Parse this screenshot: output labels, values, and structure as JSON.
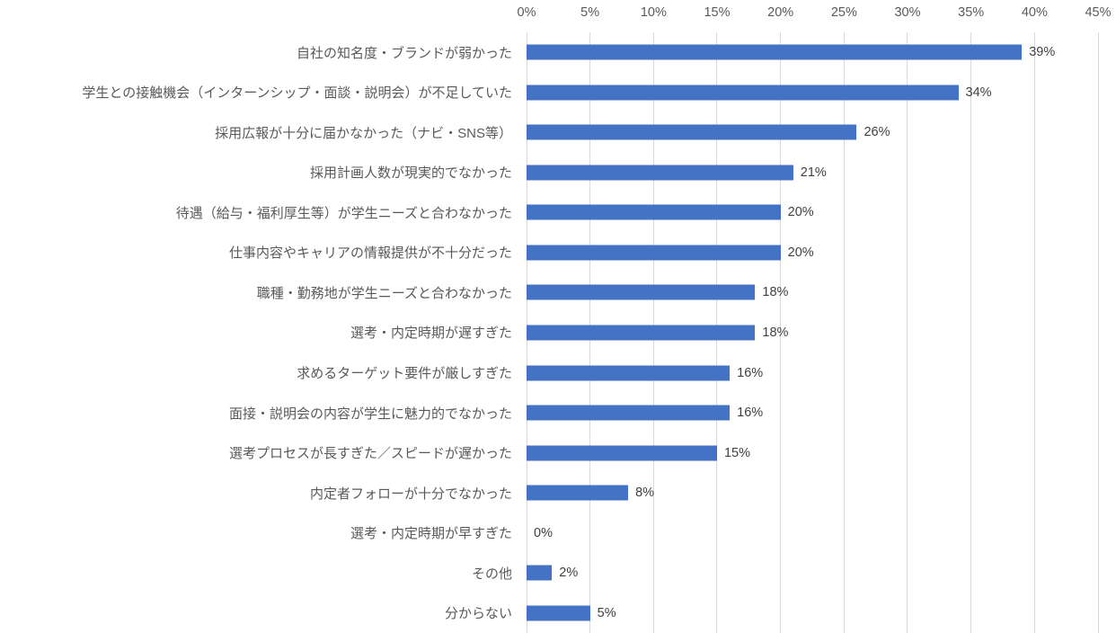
{
  "chart_data": {
    "type": "bar",
    "orientation": "horizontal",
    "title": "",
    "categories": [
      "自社の知名度・ブランドが弱かった",
      "学生との接触機会（インターンシップ・面談・説明会）が不足していた",
      "採用広報が十分に届かなかった（ナビ・SNS等）",
      "採用計画人数が現実的でなかった",
      "待遇（給与・福利厚生等）が学生ニーズと合わなかった",
      "仕事内容やキャリアの情報提供が不十分だった",
      "職種・勤務地が学生ニーズと合わなかった",
      "選考・内定時期が遅すぎた",
      "求めるターゲット要件が厳しすぎた",
      "面接・説明会の内容が学生に魅力的でなかった",
      "選考プロセスが長すぎた／スピードが遅かった",
      "内定者フォローが十分でなかった",
      "選考・内定時期が早すぎた",
      "その他",
      "分からない"
    ],
    "values": [
      39,
      34,
      26,
      21,
      20,
      20,
      18,
      18,
      16,
      16,
      15,
      8,
      0,
      2,
      5
    ],
    "data_labels": [
      "39%",
      "34%",
      "26%",
      "21%",
      "20%",
      "20%",
      "18%",
      "18%",
      "16%",
      "16%",
      "15%",
      "8%",
      "0%",
      "2%",
      "5%"
    ],
    "x_axis": {
      "position": "top",
      "min": 0,
      "max": 45,
      "tick_values": [
        0,
        5,
        10,
        15,
        20,
        25,
        30,
        35,
        40,
        45
      ],
      "ticks": [
        "0%",
        "5%",
        "10%",
        "15%",
        "20%",
        "25%",
        "30%",
        "35%",
        "40%",
        "45%"
      ]
    },
    "grid": true,
    "legend": false,
    "colors": {
      "bar": "#4472C4",
      "gridline": "#D9D9D9",
      "tick_label": "#595959",
      "category_label": "#595959",
      "data_label": "#404040",
      "background": "#FFFFFF"
    }
  }
}
